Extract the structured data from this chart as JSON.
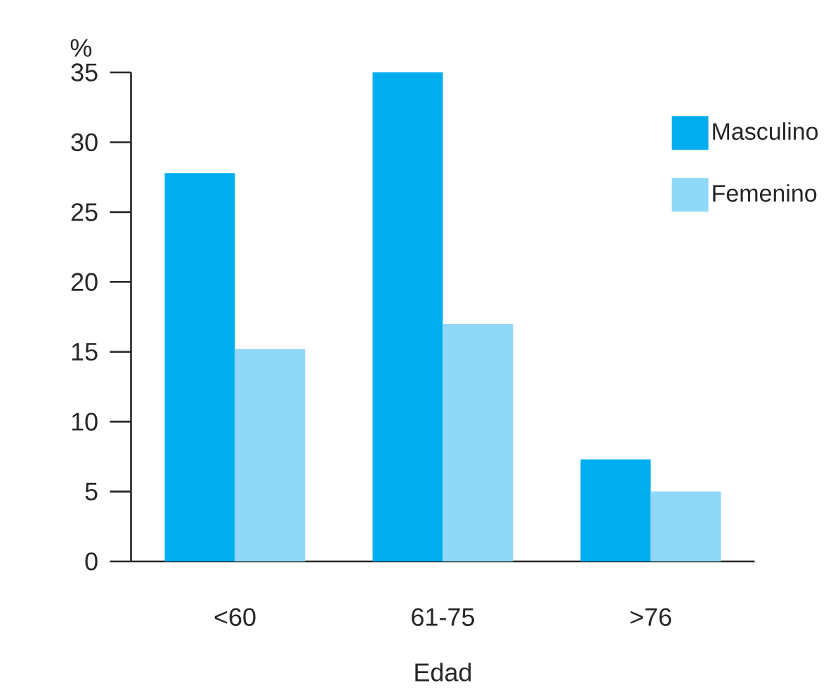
{
  "chart_data": {
    "type": "bar",
    "xlabel": "Edad",
    "ylabel": "%",
    "categories": [
      "<60",
      "61-75",
      ">76"
    ],
    "series": [
      {
        "name": "Masculino",
        "color": "#00aeef",
        "values": [
          27.8,
          35,
          7.3
        ]
      },
      {
        "name": "Femenino",
        "color": "#8fd8f8",
        "values": [
          15.2,
          17,
          5
        ]
      }
    ],
    "ylim": [
      0,
      35
    ],
    "yticks": [
      0,
      5,
      10,
      15,
      20,
      25,
      30,
      35
    ],
    "legend": "top right"
  }
}
